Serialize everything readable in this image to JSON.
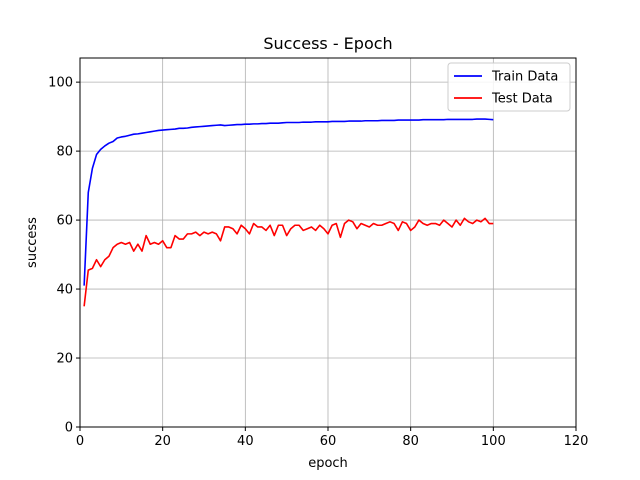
{
  "chart_data": {
    "type": "line",
    "title": "Success - Epoch",
    "xlabel": "epoch",
    "ylabel": "success",
    "xlim": [
      0,
      120
    ],
    "ylim": [
      0,
      107
    ],
    "xticks": [
      0,
      20,
      40,
      60,
      80,
      100,
      120
    ],
    "yticks": [
      0,
      20,
      40,
      60,
      80,
      100
    ],
    "grid": true,
    "legend_position": "top-right",
    "x": [
      1,
      2,
      3,
      4,
      5,
      6,
      7,
      8,
      9,
      10,
      11,
      12,
      13,
      14,
      15,
      16,
      17,
      18,
      19,
      20,
      21,
      22,
      23,
      24,
      25,
      26,
      27,
      28,
      29,
      30,
      31,
      32,
      33,
      34,
      35,
      36,
      37,
      38,
      39,
      40,
      41,
      42,
      43,
      44,
      45,
      46,
      47,
      48,
      49,
      50,
      51,
      52,
      53,
      54,
      55,
      56,
      57,
      58,
      59,
      60,
      61,
      62,
      63,
      64,
      65,
      66,
      67,
      68,
      69,
      70,
      71,
      72,
      73,
      74,
      75,
      76,
      77,
      78,
      79,
      80,
      81,
      82,
      83,
      84,
      85,
      86,
      87,
      88,
      89,
      90,
      91,
      92,
      93,
      94,
      95,
      96,
      97,
      98,
      99,
      100
    ],
    "series": [
      {
        "name": "Train Data",
        "color": "#0000ff",
        "values": [
          41,
          68,
          75,
          79,
          80.5,
          81.5,
          82.3,
          82.8,
          83.8,
          84.1,
          84.3,
          84.6,
          84.9,
          85.0,
          85.2,
          85.4,
          85.6,
          85.8,
          86.0,
          86.1,
          86.2,
          86.3,
          86.4,
          86.6,
          86.6,
          86.7,
          86.9,
          87.0,
          87.1,
          87.2,
          87.3,
          87.4,
          87.5,
          87.6,
          87.4,
          87.5,
          87.6,
          87.7,
          87.7,
          87.8,
          87.8,
          87.9,
          87.9,
          88.0,
          88.0,
          88.1,
          88.1,
          88.1,
          88.2,
          88.3,
          88.3,
          88.3,
          88.3,
          88.4,
          88.4,
          88.4,
          88.5,
          88.5,
          88.5,
          88.5,
          88.6,
          88.6,
          88.6,
          88.6,
          88.7,
          88.7,
          88.7,
          88.7,
          88.8,
          88.8,
          88.8,
          88.8,
          88.9,
          88.9,
          88.9,
          88.9,
          89.0,
          89.0,
          89.0,
          89.0,
          89.0,
          89.0,
          89.1,
          89.1,
          89.1,
          89.1,
          89.1,
          89.1,
          89.2,
          89.2,
          89.2,
          89.2,
          89.2,
          89.2,
          89.2,
          89.3,
          89.3,
          89.3,
          89.2,
          89.1
        ]
      },
      {
        "name": "Test Data",
        "color": "#ff0000",
        "values": [
          35,
          45.5,
          46,
          48.5,
          46.5,
          48.5,
          49.5,
          52,
          53,
          53.5,
          53,
          53.5,
          51,
          53,
          51,
          55.5,
          53,
          53.5,
          53,
          54,
          52,
          52,
          55.5,
          54.5,
          54.5,
          56,
          56,
          56.5,
          55.5,
          56.5,
          56,
          56.5,
          56,
          54,
          58,
          58,
          57.5,
          56,
          58.5,
          57.5,
          56,
          59,
          58,
          58,
          57,
          58.5,
          55.5,
          58.5,
          58.5,
          55.5,
          57.5,
          58.5,
          58.5,
          57,
          57.5,
          58,
          57,
          58.5,
          57.5,
          56,
          58.5,
          59,
          55,
          59,
          60,
          59.5,
          57.5,
          59,
          58.5,
          58,
          59,
          58.5,
          58.5,
          59,
          59.5,
          59,
          57,
          59.5,
          59,
          57,
          58,
          60,
          59,
          58.5,
          59,
          59,
          58.5,
          60,
          59,
          58,
          60,
          58.5,
          60.5,
          59.5,
          59,
          60,
          59.5,
          60.5,
          59,
          59
        ]
      }
    ]
  }
}
